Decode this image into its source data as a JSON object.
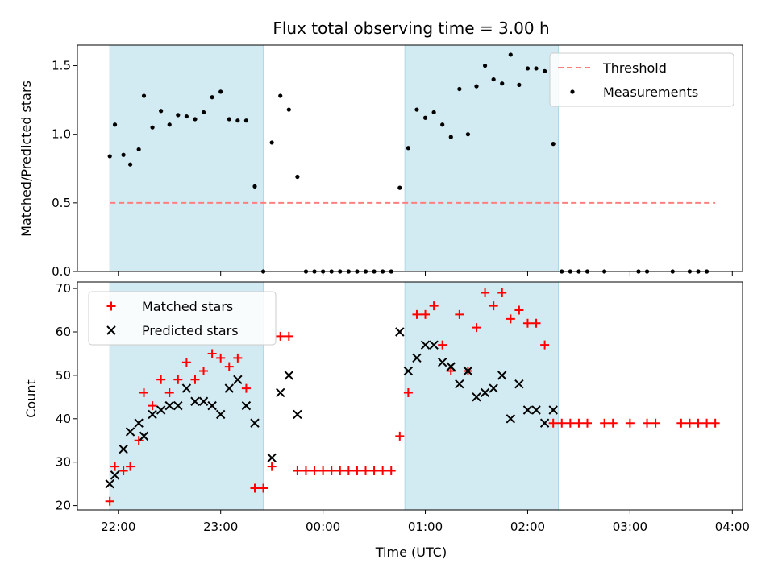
{
  "colors": {
    "band": "#add8e6",
    "threshold": "#ff7f7f",
    "measurement": "#000000",
    "matched": "#ff0000",
    "predicted": "#000000"
  },
  "chart_data": [
    {
      "type": "scatter",
      "title": "Flux total observing time = 3.00 h",
      "xlabel": "",
      "ylabel": "Matched/Predicted stars",
      "ylim": [
        0,
        1.65
      ],
      "yticks": [
        "0.0",
        "0.5",
        "1.0",
        "1.5"
      ],
      "shaded_intervals": [
        [
          "21:55",
          "23:25"
        ],
        [
          "00:48",
          "02:18"
        ]
      ],
      "legend": {
        "placement": "top-right",
        "entries": [
          "Threshold",
          "Measurements"
        ]
      },
      "series": [
        {
          "name": "Threshold",
          "kind": "dashed-line",
          "points": [
            [
              "21:55",
              0.5
            ],
            [
              "03:50",
              0.5
            ]
          ]
        },
        {
          "name": "Measurements",
          "kind": "dots",
          "points": [
            [
              "21:55",
              0.84
            ],
            [
              "21:58",
              1.07
            ],
            [
              "22:03",
              0.85
            ],
            [
              "22:07",
              0.78
            ],
            [
              "22:12",
              0.89
            ],
            [
              "22:15",
              1.28
            ],
            [
              "22:20",
              1.05
            ],
            [
              "22:25",
              1.17
            ],
            [
              "22:30",
              1.07
            ],
            [
              "22:35",
              1.14
            ],
            [
              "22:40",
              1.13
            ],
            [
              "22:45",
              1.11
            ],
            [
              "22:50",
              1.16
            ],
            [
              "22:55",
              1.27
            ],
            [
              "23:00",
              1.31
            ],
            [
              "23:05",
              1.11
            ],
            [
              "23:10",
              1.1
            ],
            [
              "23:15",
              1.1
            ],
            [
              "23:20",
              0.62
            ],
            [
              "23:25",
              0.0
            ],
            [
              "23:30",
              0.94
            ],
            [
              "23:35",
              1.28
            ],
            [
              "23:40",
              1.18
            ],
            [
              "23:45",
              0.69
            ],
            [
              "23:50",
              0.0
            ],
            [
              "23:55",
              0.0
            ],
            [
              "00:00",
              0.0
            ],
            [
              "00:05",
              0.0
            ],
            [
              "00:10",
              0.0
            ],
            [
              "00:15",
              0.0
            ],
            [
              "00:20",
              0.0
            ],
            [
              "00:25",
              0.0
            ],
            [
              "00:30",
              0.0
            ],
            [
              "00:35",
              0.0
            ],
            [
              "00:40",
              0.0
            ],
            [
              "00:45",
              0.61
            ],
            [
              "00:50",
              0.9
            ],
            [
              "00:55",
              1.18
            ],
            [
              "01:00",
              1.12
            ],
            [
              "01:05",
              1.16
            ],
            [
              "01:10",
              1.07
            ],
            [
              "01:15",
              0.98
            ],
            [
              "01:20",
              1.33
            ],
            [
              "01:25",
              1.0
            ],
            [
              "01:30",
              1.35
            ],
            [
              "01:35",
              1.5
            ],
            [
              "01:40",
              1.4
            ],
            [
              "01:45",
              1.37
            ],
            [
              "01:50",
              1.58
            ],
            [
              "01:55",
              1.36
            ],
            [
              "02:00",
              1.48
            ],
            [
              "02:05",
              1.48
            ],
            [
              "02:10",
              1.46
            ],
            [
              "02:15",
              0.93
            ],
            [
              "02:20",
              0.0
            ],
            [
              "02:25",
              0.0
            ],
            [
              "02:30",
              0.0
            ],
            [
              "02:35",
              0.0
            ],
            [
              "02:45",
              0.0
            ],
            [
              "03:05",
              0.0
            ],
            [
              "03:10",
              0.0
            ],
            [
              "03:25",
              0.0
            ],
            [
              "03:35",
              0.0
            ],
            [
              "03:40",
              0.0
            ],
            [
              "03:45",
              0.0
            ]
          ]
        }
      ]
    },
    {
      "type": "scatter",
      "title": "",
      "xlabel": "Time (UTC)",
      "ylabel": "Count",
      "ylim": [
        19,
        71.5
      ],
      "yticks": [
        "20",
        "30",
        "40",
        "50",
        "60",
        "70"
      ],
      "xticks": [
        "22:00",
        "23:00",
        "00:00",
        "01:00",
        "02:00",
        "03:00",
        "04:00"
      ],
      "shaded_intervals": [
        [
          "21:55",
          "23:25"
        ],
        [
          "00:48",
          "02:18"
        ]
      ],
      "legend": {
        "placement": "top-left",
        "entries": [
          "Matched stars",
          "Predicted stars"
        ]
      },
      "series": [
        {
          "name": "Matched stars",
          "marker": "+",
          "points": [
            [
              "21:55",
              21
            ],
            [
              "21:58",
              29
            ],
            [
              "22:03",
              28
            ],
            [
              "22:07",
              29
            ],
            [
              "22:12",
              35
            ],
            [
              "22:15",
              46
            ],
            [
              "22:20",
              43
            ],
            [
              "22:25",
              49
            ],
            [
              "22:30",
              46
            ],
            [
              "22:35",
              49
            ],
            [
              "22:40",
              53
            ],
            [
              "22:45",
              49
            ],
            [
              "22:50",
              51
            ],
            [
              "22:55",
              55
            ],
            [
              "23:00",
              54
            ],
            [
              "23:05",
              52
            ],
            [
              "23:10",
              54
            ],
            [
              "23:15",
              47
            ],
            [
              "23:20",
              24
            ],
            [
              "23:25",
              24
            ],
            [
              "23:30",
              29
            ],
            [
              "23:35",
              59
            ],
            [
              "23:40",
              59
            ],
            [
              "23:45",
              28
            ],
            [
              "23:50",
              28
            ],
            [
              "23:55",
              28
            ],
            [
              "00:00",
              28
            ],
            [
              "00:05",
              28
            ],
            [
              "00:10",
              28
            ],
            [
              "00:15",
              28
            ],
            [
              "00:20",
              28
            ],
            [
              "00:25",
              28
            ],
            [
              "00:30",
              28
            ],
            [
              "00:35",
              28
            ],
            [
              "00:40",
              28
            ],
            [
              "00:45",
              36
            ],
            [
              "00:50",
              46
            ],
            [
              "00:55",
              64
            ],
            [
              "01:00",
              64
            ],
            [
              "01:05",
              66
            ],
            [
              "01:10",
              57
            ],
            [
              "01:15",
              51
            ],
            [
              "01:20",
              64
            ],
            [
              "01:25",
              51
            ],
            [
              "01:30",
              61
            ],
            [
              "01:35",
              69
            ],
            [
              "01:40",
              66
            ],
            [
              "01:45",
              69
            ],
            [
              "01:50",
              63
            ],
            [
              "01:55",
              65
            ],
            [
              "02:00",
              62
            ],
            [
              "02:05",
              62
            ],
            [
              "02:10",
              57
            ],
            [
              "02:15",
              39
            ],
            [
              "02:20",
              39
            ],
            [
              "02:25",
              39
            ],
            [
              "02:30",
              39
            ],
            [
              "02:35",
              39
            ],
            [
              "02:45",
              39
            ],
            [
              "02:50",
              39
            ],
            [
              "03:00",
              39
            ],
            [
              "03:10",
              39
            ],
            [
              "03:15",
              39
            ],
            [
              "03:30",
              39
            ],
            [
              "03:35",
              39
            ],
            [
              "03:40",
              39
            ],
            [
              "03:45",
              39
            ],
            [
              "03:50",
              39
            ]
          ]
        },
        {
          "name": "Predicted stars",
          "marker": "x",
          "points": [
            [
              "21:55",
              25
            ],
            [
              "21:58",
              27
            ],
            [
              "22:03",
              33
            ],
            [
              "22:07",
              37
            ],
            [
              "22:12",
              39
            ],
            [
              "22:15",
              36
            ],
            [
              "22:20",
              41
            ],
            [
              "22:25",
              42
            ],
            [
              "22:30",
              43
            ],
            [
              "22:35",
              43
            ],
            [
              "22:40",
              47
            ],
            [
              "22:45",
              44
            ],
            [
              "22:50",
              44
            ],
            [
              "22:55",
              43
            ],
            [
              "23:00",
              41
            ],
            [
              "23:05",
              47
            ],
            [
              "23:10",
              49
            ],
            [
              "23:15",
              43
            ],
            [
              "23:20",
              39
            ],
            [
              "23:30",
              31
            ],
            [
              "23:35",
              46
            ],
            [
              "23:40",
              50
            ],
            [
              "23:45",
              41
            ],
            [
              "00:45",
              60
            ],
            [
              "00:50",
              51
            ],
            [
              "00:55",
              54
            ],
            [
              "01:00",
              57
            ],
            [
              "01:05",
              57
            ],
            [
              "01:10",
              53
            ],
            [
              "01:15",
              52
            ],
            [
              "01:20",
              48
            ],
            [
              "01:25",
              51
            ],
            [
              "01:30",
              45
            ],
            [
              "01:35",
              46
            ],
            [
              "01:40",
              47
            ],
            [
              "01:45",
              50
            ],
            [
              "01:50",
              40
            ],
            [
              "01:55",
              48
            ],
            [
              "02:00",
              42
            ],
            [
              "02:05",
              42
            ],
            [
              "02:10",
              39
            ],
            [
              "02:15",
              42
            ]
          ]
        }
      ]
    }
  ]
}
